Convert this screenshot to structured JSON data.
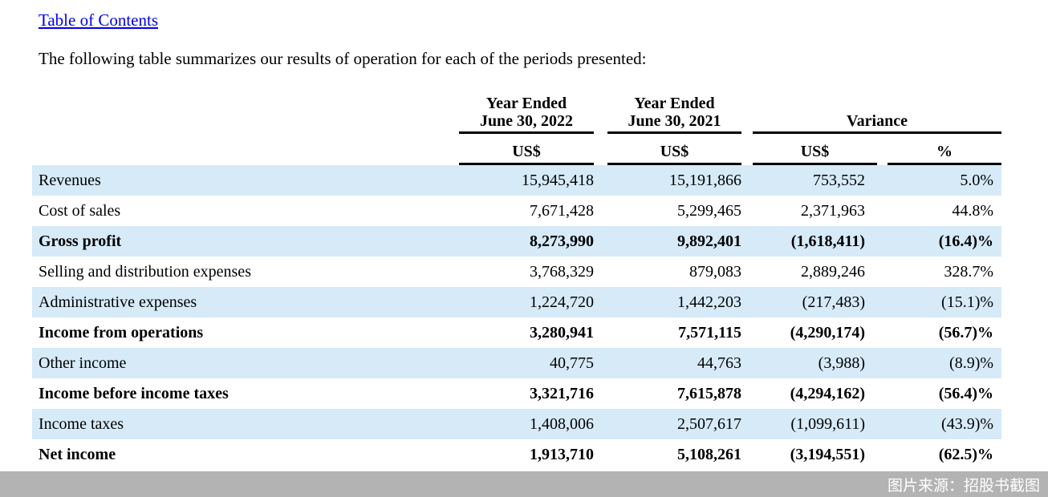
{
  "toc": {
    "label": "Table of Contents"
  },
  "intro": "The following table summarizes our results of operation for each of the periods presented:",
  "table": {
    "headers": {
      "col_2022": {
        "line1": "Year Ended",
        "line2": "June 30, 2022",
        "unit": "US$"
      },
      "col_2021": {
        "line1": "Year Ended",
        "line2": "June 30, 2021",
        "unit": "US$"
      },
      "variance": {
        "label": "Variance",
        "unit_usd": "US$",
        "unit_pct": "%"
      }
    },
    "rows": [
      {
        "label": "Revenues",
        "y2022": "15,945,418",
        "y2021": "15,191,866",
        "var_usd": "753,552",
        "var_pct": "5.0%",
        "bold": false,
        "shaded": true
      },
      {
        "label": "Cost of sales",
        "y2022": "7,671,428",
        "y2021": "5,299,465",
        "var_usd": "2,371,963",
        "var_pct": "44.8%",
        "bold": false,
        "shaded": false
      },
      {
        "label": "Gross profit",
        "y2022": "8,273,990",
        "y2021": "9,892,401",
        "var_usd": "(1,618,411)",
        "var_pct": "(16.4)%",
        "bold": true,
        "shaded": true
      },
      {
        "label": "Selling and distribution expenses",
        "y2022": "3,768,329",
        "y2021": "879,083",
        "var_usd": "2,889,246",
        "var_pct": "328.7%",
        "bold": false,
        "shaded": false
      },
      {
        "label": "Administrative expenses",
        "y2022": "1,224,720",
        "y2021": "1,442,203",
        "var_usd": "(217,483)",
        "var_pct": "(15.1)%",
        "bold": false,
        "shaded": true
      },
      {
        "label": "Income from operations",
        "y2022": "3,280,941",
        "y2021": "7,571,115",
        "var_usd": "(4,290,174)",
        "var_pct": "(56.7)%",
        "bold": true,
        "shaded": false
      },
      {
        "label": "Other income",
        "y2022": "40,775",
        "y2021": "44,763",
        "var_usd": "(3,988)",
        "var_pct": "(8.9)%",
        "bold": false,
        "shaded": true
      },
      {
        "label": "Income before income taxes",
        "y2022": "3,321,716",
        "y2021": "7,615,878",
        "var_usd": "(4,294,162)",
        "var_pct": "(56.4)%",
        "bold": true,
        "shaded": false
      },
      {
        "label": "Income taxes",
        "y2022": "1,408,006",
        "y2021": "2,507,617",
        "var_usd": "(1,099,611)",
        "var_pct": "(43.9)%",
        "bold": false,
        "shaded": true
      },
      {
        "label": "Net income",
        "y2022": "1,913,710",
        "y2021": "5,108,261",
        "var_usd": "(3,194,551)",
        "var_pct": "(62.5)%",
        "bold": true,
        "shaded": false
      }
    ]
  },
  "watermark": {
    "text": "图片来源：招股书截图"
  },
  "colors": {
    "stripe": "#d6eaf8",
    "link": "#0000ee",
    "rule": "#000000",
    "watermark_bg": "#b3b3b3",
    "watermark_text": "#ffffff"
  }
}
